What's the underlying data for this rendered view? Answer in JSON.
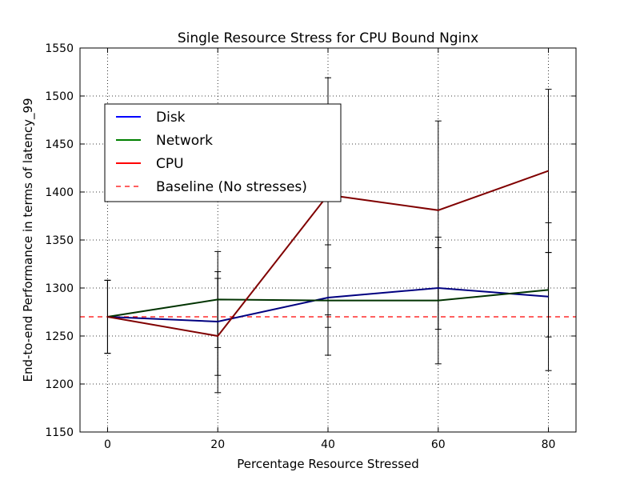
{
  "chart_data": {
    "type": "line",
    "title": "Single Resource Stress for CPU Bound Nginx",
    "xlabel": "Percentage Resource Stressed",
    "ylabel": "End-to-end Performance in terms of latency_99",
    "xlim": [
      -5,
      85
    ],
    "ylim": [
      1150,
      1550
    ],
    "xticks": [
      0,
      20,
      40,
      60,
      80
    ],
    "yticks": [
      1150,
      1200,
      1250,
      1300,
      1350,
      1400,
      1450,
      1500,
      1550
    ],
    "grid": true,
    "legend_position": "upper-left",
    "x": [
      0,
      20,
      40,
      60,
      80
    ],
    "series": [
      {
        "name": "Disk",
        "legend_color": "#0000ff",
        "line_color": "#000080",
        "values": [
          1270,
          1265,
          1290,
          1300,
          1291
        ],
        "error_low": [
          1232,
          1209,
          1259,
          1257,
          1249
        ],
        "error_high": [
          1308,
          1317,
          1321,
          1342,
          1337
        ]
      },
      {
        "name": "Network",
        "legend_color": "#008000",
        "line_color": "#003300",
        "values": [
          1270,
          1288,
          1287,
          1287,
          1298
        ],
        "error_low": [
          1232,
          1238,
          1230,
          1221,
          1214
        ],
        "error_high": [
          1308,
          1338,
          1345,
          1353,
          1368
        ]
      },
      {
        "name": "CPU",
        "legend_color": "#ff0000",
        "line_color": "#800000",
        "values": [
          1270,
          1250,
          1397,
          1381,
          1422
        ],
        "error_low": [
          1232,
          1191,
          1272,
          1287,
          1337
        ],
        "error_high": [
          1308,
          1310,
          1519,
          1474,
          1507
        ]
      }
    ],
    "baseline": {
      "name": "Baseline (No stresses)",
      "value": 1270,
      "color": "#ff0000",
      "style": "dashed"
    }
  }
}
